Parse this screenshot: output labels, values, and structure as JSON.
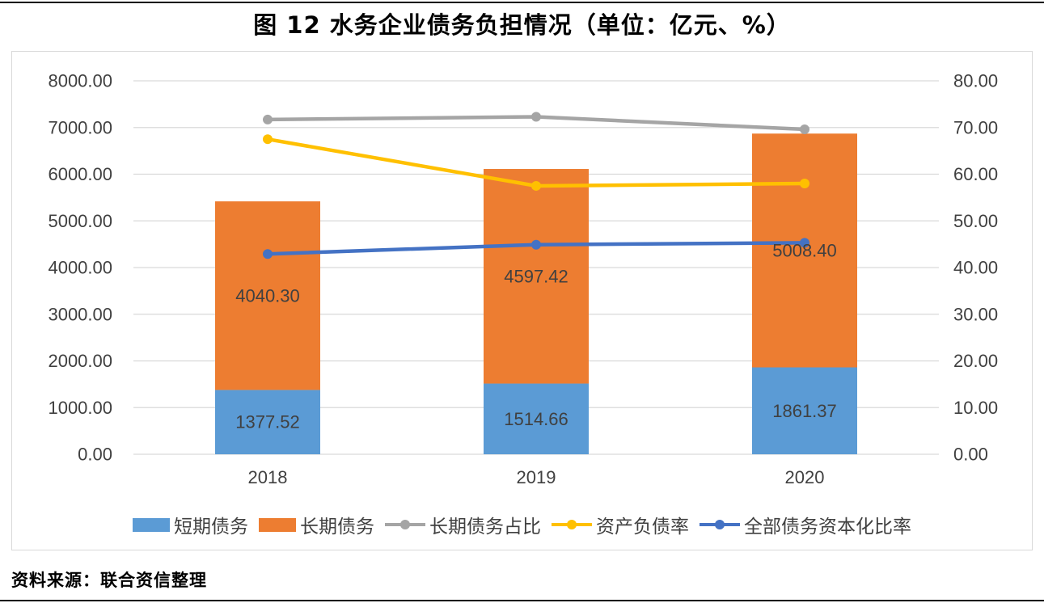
{
  "page": {
    "title": "图 12  水务企业债务负担情况（单位：亿元、%）",
    "source": "资料来源：联合资信整理"
  },
  "chart_data": {
    "type": "bar",
    "subtype": "stacked-bars-with-lines-dual-axis",
    "title": "图 12  水务企业债务负担情况（单位：亿元、%）",
    "categories": [
      "2018",
      "2019",
      "2020"
    ],
    "bar_series": [
      {
        "name": "短期债务",
        "color": "#5B9BD5",
        "axis": "left",
        "values": [
          1377.52,
          1514.66,
          1861.37
        ],
        "labels": [
          "1377.52",
          "1514.66",
          "1861.37"
        ]
      },
      {
        "name": "长期债务",
        "color": "#ED7D31",
        "axis": "left",
        "values": [
          4040.3,
          4597.42,
          5008.4
        ],
        "labels": [
          "4040.30",
          "4597.42",
          "5008.40"
        ]
      }
    ],
    "line_series": [
      {
        "name": "长期债务占比",
        "color": "#A5A5A5",
        "axis": "right",
        "values": [
          71.7,
          72.3,
          69.6
        ]
      },
      {
        "name": "资产负债率",
        "color": "#FFC000",
        "axis": "right",
        "values": [
          67.5,
          57.5,
          58.0
        ]
      },
      {
        "name": "全部债务资本化比率",
        "color": "#4472C4",
        "axis": "right",
        "values": [
          42.9,
          44.9,
          45.3
        ]
      }
    ],
    "left_axis": {
      "min": 0,
      "max": 8000,
      "step": 1000,
      "ticks": [
        "0.00",
        "1000.00",
        "2000.00",
        "3000.00",
        "4000.00",
        "5000.00",
        "6000.00",
        "7000.00",
        "8000.00"
      ]
    },
    "right_axis": {
      "min": 0,
      "max": 80,
      "step": 10,
      "ticks": [
        "0.00",
        "10.00",
        "20.00",
        "30.00",
        "40.00",
        "50.00",
        "60.00",
        "70.00",
        "80.00"
      ]
    },
    "grid": true,
    "legend_position": "bottom",
    "colors": {
      "gridline": "#D9D9D9",
      "axis_text": "#404040",
      "data_label_text": "#404040"
    }
  }
}
